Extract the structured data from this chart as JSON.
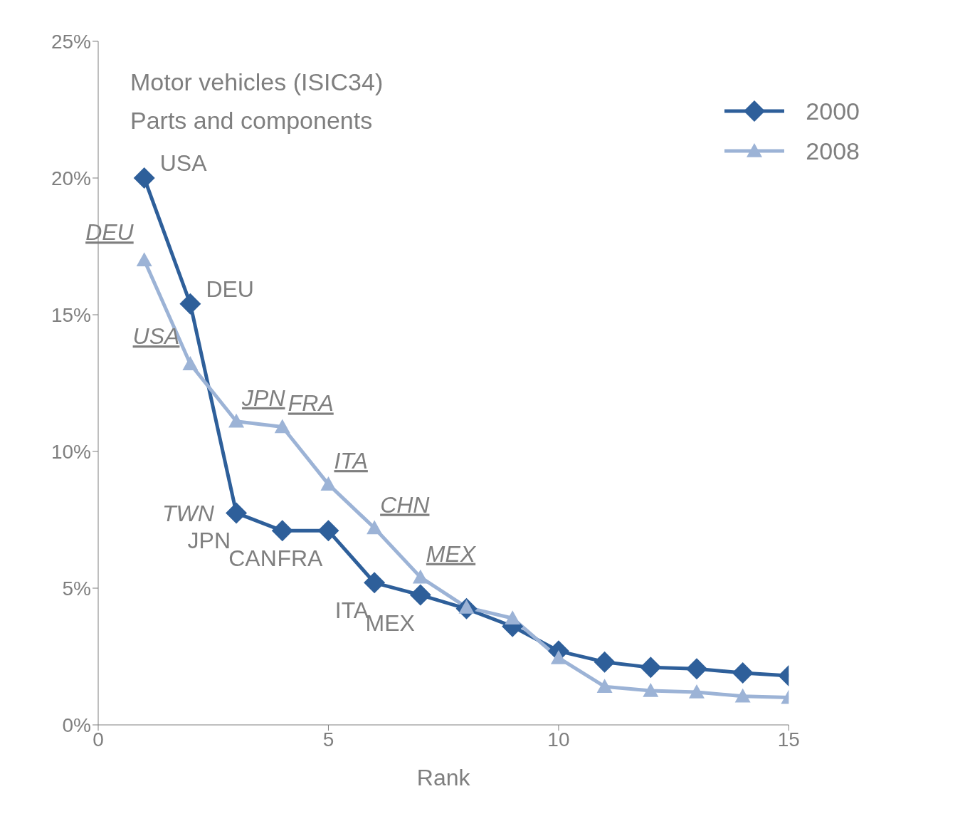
{
  "chart_data": {
    "type": "line",
    "title": "Motor vehicles (ISIC34)",
    "subtitle": "Parts and components",
    "xlabel": "Rank",
    "x": [
      1,
      2,
      3,
      4,
      5,
      6,
      7,
      8,
      9,
      10,
      11,
      12,
      13,
      14,
      15
    ],
    "series": [
      {
        "name": "2000",
        "color": "#2e5f9a",
        "marker": "diamond",
        "values": [
          20,
          15.4,
          7.75,
          7.1,
          7.1,
          5.2,
          4.75,
          4.25,
          3.6,
          2.7,
          2.3,
          2.1,
          2.05,
          1.9,
          1.8
        ]
      },
      {
        "name": "2008",
        "color": "#9cb3d6",
        "marker": "triangle",
        "values": [
          17,
          13.2,
          11.1,
          10.9,
          8.8,
          7.2,
          5.4,
          4.3,
          3.9,
          2.45,
          1.4,
          1.25,
          1.2,
          1.05,
          1.0
        ]
      }
    ],
    "xlim": [
      0,
      15
    ],
    "xticks": [
      0,
      5,
      10,
      15
    ],
    "ylim": [
      0,
      25
    ],
    "yticks": [
      {
        "value": 0,
        "label": "0%"
      },
      {
        "value": 5,
        "label": "5%"
      },
      {
        "value": 10,
        "label": "10%"
      },
      {
        "value": 15,
        "label": "15%"
      },
      {
        "value": 20,
        "label": "20%"
      },
      {
        "value": 25,
        "label": "25%"
      }
    ],
    "grid": false,
    "legend": "top right",
    "line_style": "solid",
    "annotations": [
      {
        "text": "USA",
        "x": 1,
        "y": 20
      },
      {
        "text": "DEU",
        "x": 2,
        "y": 15.4
      },
      {
        "text": "JPN",
        "x": 3,
        "y": 7.75
      },
      {
        "text": "CAN",
        "x": 4,
        "y": 7.1
      },
      {
        "text": "FRA",
        "x": 5,
        "y": 7.1
      },
      {
        "text": "ITA",
        "x": 6,
        "y": 5.2
      },
      {
        "text": "MEX",
        "x": 7,
        "y": 4.75
      },
      {
        "text": "DEU",
        "x": 1,
        "y": 17
      },
      {
        "text": "USA",
        "x": 2,
        "y": 13.2
      },
      {
        "text": "JPN",
        "x": 3,
        "y": 11.1
      },
      {
        "text": "FRA",
        "x": 4,
        "y": 10.9
      },
      {
        "text": "ITA",
        "x": 5,
        "y": 8.8
      },
      {
        "text": "CHN",
        "x": 6,
        "y": 7.2
      },
      {
        "text": "MEX",
        "x": 7,
        "y": 5.4
      },
      "TWN"
    ]
  }
}
